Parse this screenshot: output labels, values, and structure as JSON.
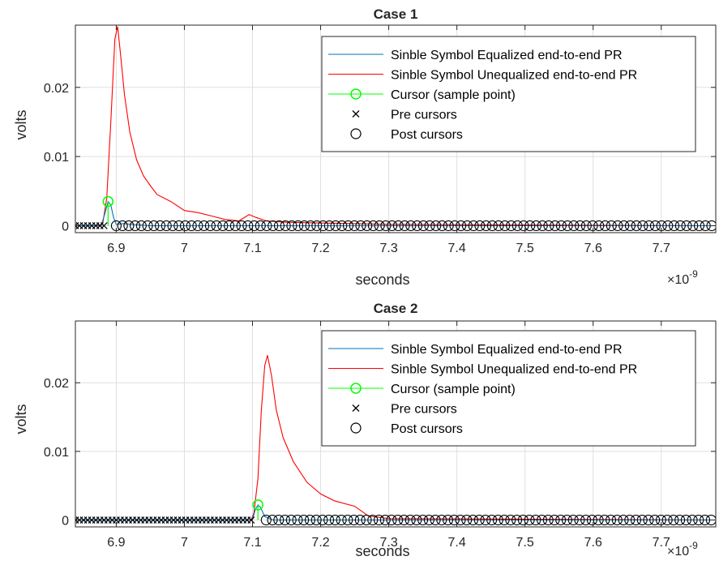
{
  "chart_data": [
    {
      "type": "line",
      "title": "Case 1",
      "xlabel": "seconds",
      "ylabel": "volts",
      "x_exponent_label": "×10",
      "x_exponent": "-9",
      "xlim": [
        6.84,
        7.78
      ],
      "ylim": [
        -0.001,
        0.029
      ],
      "xticks": [
        "6.9",
        "7",
        "7.1",
        "7.2",
        "7.3",
        "7.4",
        "7.5",
        "7.6",
        "7.7"
      ],
      "xtick_values": [
        6.9,
        7.0,
        7.1,
        7.2,
        7.3,
        7.4,
        7.5,
        7.6,
        7.7
      ],
      "yticks": [
        "0",
        "0.01",
        "0.02"
      ],
      "ytick_values": [
        0,
        0.01,
        0.02
      ],
      "grid": true,
      "legend_position": "top-right",
      "legend": [
        {
          "label": "Sinble Symbol Equalized end-to-end PR",
          "color": "#0072BD",
          "marker": "line"
        },
        {
          "label": "Sinble Symbol Unequalized end-to-end PR",
          "color": "#ff0000",
          "marker": "line"
        },
        {
          "label": "Cursor (sample point)",
          "color": "#00ff00",
          "marker": "line-circle"
        },
        {
          "label": "Pre cursors",
          "color": "#000000",
          "marker": "x"
        },
        {
          "label": "Post cursors",
          "color": "#000000",
          "marker": "circle"
        }
      ],
      "series": [
        {
          "name": "Sinble Symbol Unequalized end-to-end PR",
          "color": "#ff0000",
          "x": [
            6.84,
            6.87,
            6.88,
            6.886,
            6.892,
            6.898,
            6.902,
            6.906,
            6.912,
            6.92,
            6.93,
            6.94,
            6.95,
            6.96,
            6.98,
            7.0,
            7.02,
            7.04,
            7.06,
            7.08,
            7.095,
            7.105,
            7.12,
            7.15,
            7.2,
            7.3,
            7.5,
            7.78
          ],
          "y": [
            0,
            0,
            0.0002,
            0.004,
            0.015,
            0.027,
            0.0288,
            0.025,
            0.019,
            0.0135,
            0.0095,
            0.0072,
            0.0058,
            0.0045,
            0.0035,
            0.0022,
            0.0019,
            0.0014,
            0.0009,
            0.0007,
            0.0016,
            0.0012,
            0.0007,
            0.0005,
            0.0004,
            0.0002,
            0.0001,
            0
          ]
        },
        {
          "name": "Sinble Symbol Equalized end-to-end PR",
          "color": "#0072BD",
          "x": [
            6.84,
            6.878,
            6.884,
            6.888,
            6.892,
            6.896,
            6.9,
            6.91,
            6.95,
            7.78
          ],
          "y": [
            0,
            0,
            0.002,
            0.0035,
            0.003,
            0.0012,
            0.0002,
            0.0003,
            0,
            0
          ]
        }
      ],
      "cursor": {
        "x": 6.888,
        "y": 0.0035
      },
      "pre_cursor_x_range": [
        6.84,
        6.882
      ],
      "post_cursor_x_range": [
        6.9,
        7.78
      ]
    },
    {
      "type": "line",
      "title": "Case 2",
      "xlabel": "seconds",
      "ylabel": "volts",
      "x_exponent_label": "×10",
      "x_exponent": "-9",
      "xlim": [
        6.84,
        7.78
      ],
      "ylim": [
        -0.001,
        0.029
      ],
      "xticks": [
        "6.9",
        "7",
        "7.1",
        "7.2",
        "7.3",
        "7.4",
        "7.5",
        "7.6",
        "7.7"
      ],
      "xtick_values": [
        6.9,
        7.0,
        7.1,
        7.2,
        7.3,
        7.4,
        7.5,
        7.6,
        7.7
      ],
      "yticks": [
        "0",
        "0.01",
        "0.02"
      ],
      "ytick_values": [
        0,
        0.01,
        0.02
      ],
      "grid": true,
      "legend_position": "top-right",
      "legend": [
        {
          "label": "Sinble Symbol Equalized end-to-end PR",
          "color": "#0072BD",
          "marker": "line"
        },
        {
          "label": "Sinble Symbol Unequalized end-to-end PR",
          "color": "#ff0000",
          "marker": "line"
        },
        {
          "label": "Cursor (sample point)",
          "color": "#00ff00",
          "marker": "line-circle"
        },
        {
          "label": "Pre cursors",
          "color": "#000000",
          "marker": "x"
        },
        {
          "label": "Post cursors",
          "color": "#000000",
          "marker": "circle"
        }
      ],
      "series": [
        {
          "name": "Sinble Symbol Unequalized end-to-end PR",
          "color": "#ff0000",
          "x": [
            6.84,
            7.098,
            7.102,
            7.108,
            7.113,
            7.118,
            7.122,
            7.128,
            7.135,
            7.145,
            7.16,
            7.18,
            7.2,
            7.22,
            7.25,
            7.27,
            7.3,
            7.78
          ],
          "y": [
            0,
            0,
            0.001,
            0.006,
            0.016,
            0.0225,
            0.024,
            0.021,
            0.016,
            0.012,
            0.0085,
            0.0055,
            0.0038,
            0.0028,
            0.002,
            0.0006,
            0.0002,
            0
          ]
        },
        {
          "name": "Sinble Symbol Equalized end-to-end PR",
          "color": "#0072BD",
          "x": [
            6.84,
            7.1,
            7.104,
            7.108,
            7.112,
            7.118,
            7.13,
            7.78
          ],
          "y": [
            0,
            0,
            0.0015,
            0.0022,
            0.0018,
            0.0005,
            0,
            0
          ]
        }
      ],
      "cursor": {
        "x": 7.108,
        "y": 0.0022
      },
      "pre_cursor_x_range": [
        6.84,
        7.1
      ],
      "post_cursor_x_range": [
        7.12,
        7.78
      ]
    }
  ]
}
